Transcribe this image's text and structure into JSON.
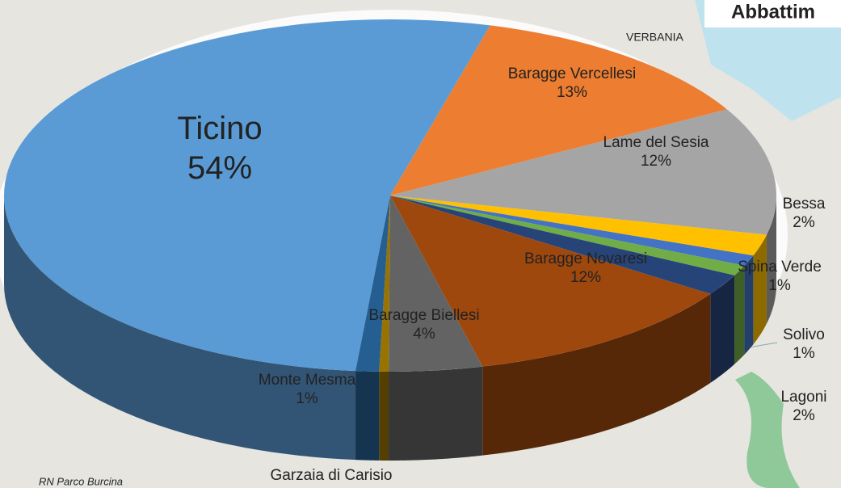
{
  "chart_data": {
    "type": "pie3d",
    "title": "Abbattim",
    "map_labels": [
      "VERBANIA",
      "RN Parco Burcina"
    ],
    "categories": [
      "Ticino",
      "Baragge Vercellesi",
      "Lame del Sesia",
      "Bessa",
      "Spina Verde",
      "Solivo",
      "Lagoni",
      "Baragge Novaresi",
      "Baragge Biellesi",
      "Garzaia di Carisio",
      "Monte Mesma"
    ],
    "values": [
      54,
      13,
      12,
      2,
      1,
      1,
      2,
      12,
      4,
      0.4,
      1
    ],
    "value_labels": [
      "54%",
      "13%",
      "12%",
      "2%",
      "1%",
      "1%",
      "2%",
      "12%",
      "4%",
      null,
      "1%"
    ],
    "colors": [
      "#5b9bd5",
      "#ed7d31",
      "#a5a5a5",
      "#ffc000",
      "#4472c4",
      "#70ad47",
      "#264478",
      "#9e480e",
      "#636363",
      "#997300",
      "#255e91"
    ]
  }
}
